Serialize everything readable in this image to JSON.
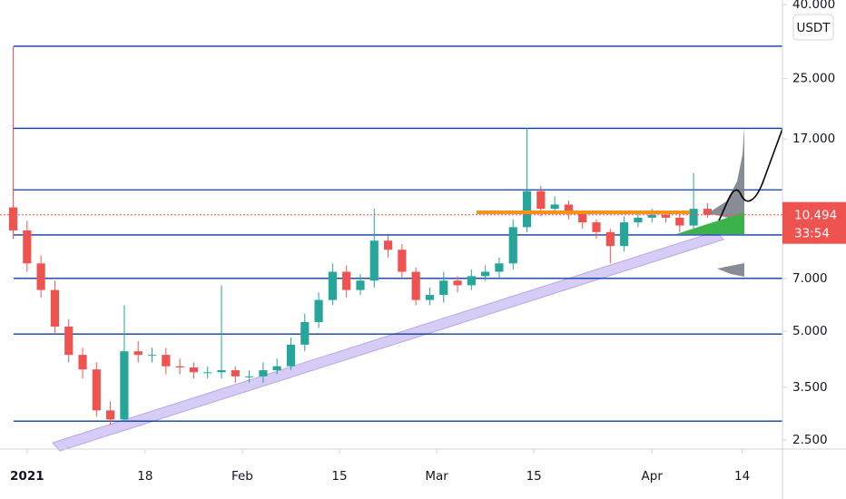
{
  "chart_data": {
    "type": "candlestick",
    "currency": "USDT",
    "log_scale": true,
    "x": [
      -2,
      0,
      2,
      4,
      6,
      8,
      10,
      12,
      14,
      16,
      18,
      20,
      22,
      24,
      26,
      28,
      30,
      32,
      34,
      36,
      38,
      40,
      42,
      44,
      46,
      48,
      50,
      52,
      54,
      56,
      58,
      60,
      62,
      64,
      66,
      68,
      70,
      72,
      74,
      76,
      78,
      80,
      82,
      84,
      86,
      88,
      90,
      92,
      94,
      96,
      98
    ],
    "open": [
      11.0,
      9.5,
      7.7,
      6.5,
      5.15,
      4.3,
      3.92,
      3.02,
      2.85,
      4.4,
      4.3,
      4.3,
      4.0,
      3.97,
      3.85,
      3.85,
      3.9,
      3.75,
      3.75,
      3.9,
      4.0,
      4.59,
      5.3,
      6.1,
      7.3,
      6.5,
      6.9,
      8.9,
      8.4,
      7.3,
      6.1,
      6.3,
      6.9,
      6.7,
      7.1,
      7.3,
      7.7,
      9.7,
      12.2,
      10.9,
      11.2,
      10.6,
      10.0,
      9.4,
      8.6,
      10.0,
      10.3,
      10.5,
      10.3,
      9.8,
      10.9
    ],
    "high": [
      30.7,
      10.1,
      8.1,
      6.9,
      5.4,
      4.5,
      4.1,
      3.2,
      5.9,
      4.7,
      4.5,
      4.5,
      4.2,
      4.1,
      4.0,
      6.7,
      4.0,
      3.9,
      4.1,
      4.2,
      4.8,
      5.6,
      6.4,
      7.7,
      7.6,
      7.2,
      10.9,
      9.2,
      8.7,
      7.5,
      6.6,
      7.3,
      7.1,
      7.4,
      7.6,
      8.0,
      10.2,
      18.2,
      12.6,
      11.8,
      11.5,
      10.8,
      10.2,
      9.6,
      10.4,
      10.7,
      10.9,
      10.8,
      10.5,
      13.7,
      11.3
    ],
    "low": [
      9.0,
      7.3,
      6.2,
      4.9,
      4.1,
      3.7,
      2.9,
      2.75,
      2.8,
      4.1,
      4.1,
      3.8,
      3.8,
      3.7,
      3.7,
      3.7,
      3.6,
      3.6,
      3.6,
      3.8,
      3.9,
      4.4,
      5.1,
      5.9,
      6.2,
      6.3,
      6.6,
      8.0,
      7.0,
      5.9,
      5.9,
      6.0,
      6.4,
      6.5,
      6.9,
      7.0,
      7.4,
      9.4,
      10.4,
      10.6,
      10.2,
      9.6,
      9.0,
      7.7,
      8.3,
      9.7,
      10.0,
      10.0,
      9.4,
      9.6,
      10.3
    ],
    "close": [
      9.5,
      7.7,
      6.5,
      5.15,
      4.3,
      3.92,
      3.02,
      2.85,
      4.4,
      4.3,
      4.3,
      4.0,
      3.97,
      3.85,
      3.85,
      3.9,
      3.75,
      3.75,
      3.9,
      4.0,
      4.59,
      5.3,
      6.1,
      7.3,
      6.5,
      6.9,
      8.9,
      8.4,
      7.3,
      6.1,
      6.3,
      6.9,
      6.7,
      7.1,
      7.3,
      7.7,
      9.7,
      12.2,
      10.9,
      11.2,
      10.6,
      10.0,
      9.4,
      8.6,
      10.0,
      10.3,
      10.5,
      10.3,
      9.8,
      10.9,
      10.494
    ],
    "up_color": "#26a69a",
    "down_color": "#ef5350",
    "levels": [
      30.7,
      18.2,
      12.3,
      9.23,
      7.0,
      4.91,
      2.82
    ],
    "level_color": "#0d3b9e",
    "last_price": 10.494,
    "countdown": "33:54",
    "xlim": [
      -3.9,
      108.8
    ],
    "xticks": [
      {
        "value": 0,
        "label": "2021"
      },
      {
        "value": 17,
        "label": "18"
      },
      {
        "value": 31,
        "label": "Feb"
      },
      {
        "value": 45,
        "label": "15"
      },
      {
        "value": 59,
        "label": "Mar"
      },
      {
        "value": 73,
        "label": "15"
      },
      {
        "value": 90,
        "label": "Apr"
      },
      {
        "value": 103,
        "label": "14"
      }
    ],
    "ylim": [
      2.36,
      41.2
    ],
    "yticks": [
      {
        "value": 2.5,
        "label": "2.500"
      },
      {
        "value": 3.5,
        "label": "3.500"
      },
      {
        "value": 5,
        "label": "5.000"
      },
      {
        "value": 7,
        "label": "7.000"
      },
      {
        "value": 17,
        "label": "17.000"
      },
      {
        "value": 25,
        "label": "25.000"
      },
      {
        "value": 40,
        "label": "40.000"
      }
    ]
  }
}
